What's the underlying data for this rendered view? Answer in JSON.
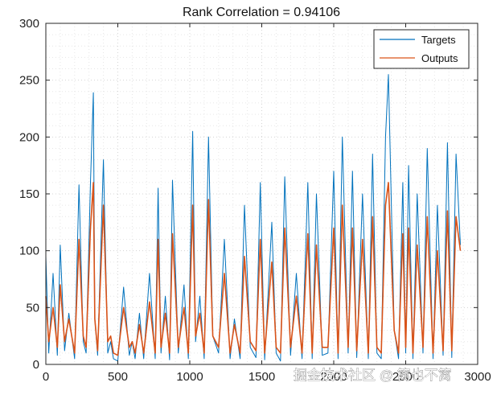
{
  "chart_data": {
    "type": "line",
    "title": "Rank Correlation = 0.94106",
    "xlabel": "",
    "ylabel": "",
    "xlim": [
      0,
      3000
    ],
    "ylim": [
      0,
      300
    ],
    "xticks": [
      0,
      500,
      1000,
      1500,
      2000,
      2500,
      3000
    ],
    "yticks": [
      0,
      50,
      100,
      150,
      200,
      250,
      300
    ],
    "grid": "minor-dotted",
    "legend_position": "top-right",
    "series": [
      {
        "name": "Targets",
        "color": "#0072BD",
        "x": [
          0,
          20,
          50,
          80,
          100,
          130,
          160,
          200,
          230,
          260,
          280,
          310,
          330,
          340,
          360,
          400,
          430,
          450,
          470,
          500,
          540,
          580,
          600,
          620,
          650,
          680,
          720,
          760,
          780,
          800,
          830,
          860,
          880,
          920,
          960,
          990,
          1020,
          1040,
          1070,
          1100,
          1130,
          1160,
          1200,
          1240,
          1280,
          1310,
          1350,
          1380,
          1420,
          1460,
          1490,
          1520,
          1570,
          1600,
          1630,
          1660,
          1700,
          1740,
          1780,
          1820,
          1850,
          1880,
          1920,
          1960,
          2000,
          2030,
          2060,
          2100,
          2130,
          2160,
          2200,
          2240,
          2270,
          2300,
          2330,
          2360,
          2380,
          2420,
          2450,
          2480,
          2500,
          2520,
          2550,
          2580,
          2620,
          2650,
          2690,
          2720,
          2760,
          2790,
          2820,
          2850,
          2880
        ],
        "values": [
          95,
          10,
          80,
          8,
          105,
          12,
          45,
          5,
          158,
          20,
          10,
          160,
          239,
          40,
          8,
          180,
          10,
          20,
          5,
          3,
          68,
          8,
          20,
          5,
          45,
          5,
          80,
          5,
          155,
          10,
          60,
          4,
          162,
          10,
          70,
          5,
          205,
          20,
          60,
          5,
          200,
          25,
          10,
          110,
          5,
          40,
          5,
          140,
          15,
          6,
          160,
          4,
          125,
          10,
          3,
          165,
          8,
          80,
          5,
          160,
          5,
          150,
          8,
          10,
          170,
          5,
          200,
          10,
          170,
          6,
          150,
          5,
          185,
          10,
          5,
          200,
          255,
          30,
          5,
          160,
          10,
          175,
          5,
          150,
          10,
          190,
          5,
          140,
          8,
          195,
          6,
          185,
          105
        ]
      },
      {
        "name": "Outputs",
        "color": "#D95319",
        "x": [
          0,
          20,
          50,
          80,
          100,
          130,
          160,
          200,
          230,
          260,
          280,
          310,
          330,
          340,
          360,
          400,
          430,
          450,
          470,
          500,
          540,
          580,
          600,
          620,
          650,
          680,
          720,
          760,
          780,
          800,
          830,
          860,
          880,
          920,
          960,
          990,
          1020,
          1040,
          1070,
          1100,
          1130,
          1160,
          1200,
          1240,
          1280,
          1310,
          1350,
          1380,
          1420,
          1460,
          1490,
          1520,
          1570,
          1600,
          1630,
          1660,
          1700,
          1740,
          1780,
          1820,
          1850,
          1880,
          1920,
          1960,
          2000,
          2030,
          2060,
          2100,
          2130,
          2160,
          2200,
          2240,
          2270,
          2300,
          2330,
          2360,
          2380,
          2420,
          2450,
          2480,
          2500,
          2520,
          2550,
          2580,
          2620,
          2650,
          2690,
          2720,
          2760,
          2790,
          2820,
          2850,
          2880
        ],
        "values": [
          60,
          20,
          50,
          15,
          70,
          20,
          40,
          10,
          110,
          25,
          15,
          120,
          160,
          40,
          12,
          140,
          20,
          25,
          10,
          8,
          50,
          15,
          20,
          10,
          35,
          10,
          55,
          10,
          110,
          15,
          45,
          10,
          115,
          15,
          50,
          10,
          140,
          25,
          45,
          10,
          145,
          25,
          15,
          80,
          10,
          35,
          10,
          95,
          20,
          12,
          110,
          10,
          90,
          15,
          10,
          120,
          15,
          60,
          10,
          115,
          10,
          105,
          15,
          15,
          120,
          10,
          140,
          15,
          120,
          12,
          110,
          10,
          130,
          15,
          10,
          140,
          160,
          30,
          10,
          115,
          15,
          120,
          10,
          105,
          15,
          130,
          10,
          100,
          12,
          135,
          12,
          130,
          100
        ]
      }
    ]
  },
  "watermark": "掘金技术社区 @ 篱也不篱"
}
